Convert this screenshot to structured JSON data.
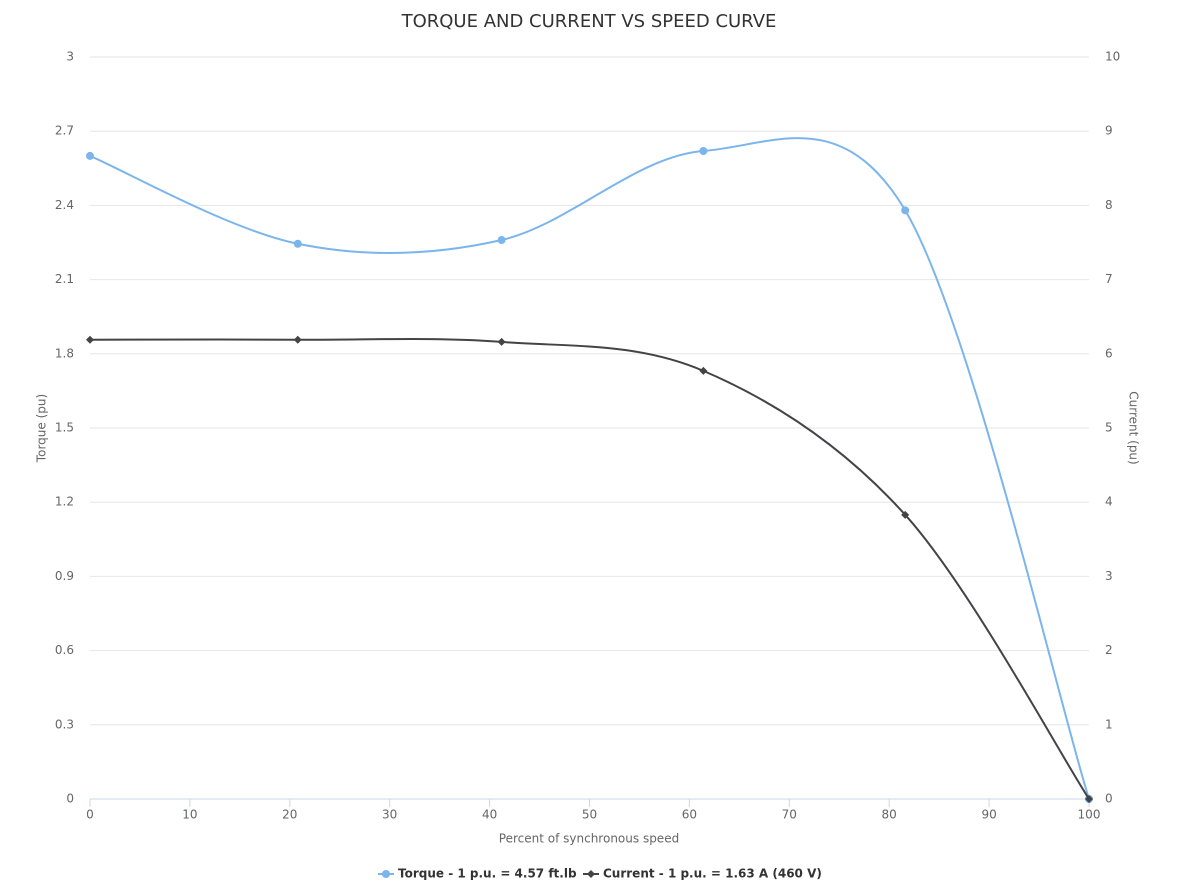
{
  "chart_data": {
    "type": "line",
    "title": "TORQUE AND CURRENT VS SPEED CURVE",
    "x_label": "Percent of synchronous speed",
    "y_label": "Torque (pu)",
    "y2_label": "Current (pu)",
    "x": [
      0,
      20.8,
      41.2,
      61.4,
      81.6,
      100
    ],
    "series": [
      {
        "name": "Torque - 1 p.u. = 4.57 ft.lb",
        "color": "#7cb5ec",
        "marker": "circle",
        "values": [
          2.6,
          2.245,
          2.26,
          2.62,
          2.38,
          0
        ]
      },
      {
        "name": "Current - 1 p.u. = 1.63 A (460 V)",
        "color": "#434348",
        "marker": "diamond",
        "axis": "y2",
        "values": [
          6.19,
          6.19,
          6.16,
          5.77,
          3.83,
          0
        ]
      }
    ],
    "xlim": [
      0,
      100
    ],
    "xticks": [
      0,
      10,
      20,
      30,
      40,
      50,
      60,
      70,
      80,
      90,
      100
    ],
    "ylim": [
      0,
      3
    ],
    "yticks": [
      0,
      0.3,
      0.6,
      0.9,
      1.2,
      1.5,
      1.8,
      2.1,
      2.4,
      2.7,
      3
    ],
    "y2lim": [
      0,
      10
    ],
    "y2ticks": [
      0,
      1,
      2,
      3,
      4,
      5,
      6,
      7,
      8,
      9,
      10
    ],
    "grid": true,
    "smooth": true,
    "legend": "bottom"
  }
}
